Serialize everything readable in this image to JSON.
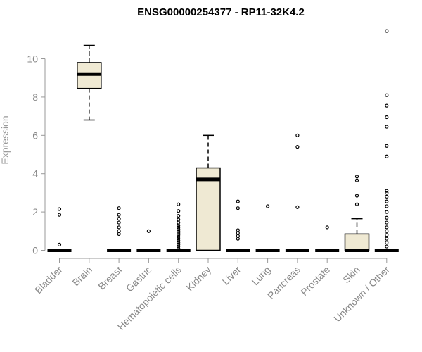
{
  "chart_data": {
    "type": "boxplot",
    "title": "ENSG00000254377 - RP11-32K4.2",
    "ylabel": "Expression",
    "xlabel": "",
    "ylim": [
      0,
      11.6
    ],
    "yticks": [
      0,
      2,
      4,
      6,
      8,
      10
    ],
    "grid": false,
    "colors": {
      "box_fill": "#efe9d3",
      "axis": "#999999",
      "text": "#888888"
    },
    "categories": [
      "Bladder",
      "Brain",
      "Breast",
      "Gastric",
      "Hematopoietic cells",
      "Kidney",
      "Liver",
      "Lung",
      "Pancreas",
      "Prostate",
      "Skin",
      "Unknown / Other"
    ],
    "boxes": [
      {
        "category": "Bladder",
        "min": 0,
        "q1": 0,
        "median": 0,
        "q3": 0,
        "max": 0,
        "outliers": [
          0.3,
          1.85,
          2.15
        ]
      },
      {
        "category": "Brain",
        "min": 6.8,
        "q1": 8.45,
        "median": 9.2,
        "q3": 9.8,
        "max": 10.7,
        "outliers": []
      },
      {
        "category": "Breast",
        "min": 0,
        "q1": 0,
        "median": 0,
        "q3": 0,
        "max": 0,
        "outliers": [
          0.85,
          1.0,
          1.2,
          1.45,
          1.65,
          1.85,
          2.2
        ]
      },
      {
        "category": "Gastric",
        "min": 0,
        "q1": 0,
        "median": 0,
        "q3": 0,
        "max": 0,
        "outliers": [
          1.0
        ]
      },
      {
        "category": "Hematopoietic cells",
        "min": 0,
        "q1": 0,
        "median": 0,
        "q3": 0,
        "max": 0,
        "outliers": [
          0.1,
          0.2,
          0.3,
          0.4,
          0.5,
          0.6,
          0.7,
          0.8,
          0.9,
          1.0,
          1.1,
          1.2,
          1.3,
          1.45,
          1.6,
          1.8,
          2.05,
          2.4
        ]
      },
      {
        "category": "Kidney",
        "min": 0,
        "q1": 0,
        "median": 3.7,
        "q3": 4.3,
        "max": 6.0,
        "outliers": []
      },
      {
        "category": "Liver",
        "min": 0,
        "q1": 0,
        "median": 0,
        "q3": 0,
        "max": 0,
        "outliers": [
          0.6,
          0.75,
          0.9,
          1.05,
          2.2,
          2.55
        ]
      },
      {
        "category": "Lung",
        "min": 0,
        "q1": 0,
        "median": 0,
        "q3": 0,
        "max": 0,
        "outliers": [
          2.3
        ]
      },
      {
        "category": "Pancreas",
        "min": 0,
        "q1": 0,
        "median": 0,
        "q3": 0,
        "max": 0,
        "outliers": [
          2.25,
          5.4,
          6.0
        ]
      },
      {
        "category": "Prostate",
        "min": 0,
        "q1": 0,
        "median": 0,
        "q3": 0,
        "max": 0,
        "outliers": [
          1.2
        ]
      },
      {
        "category": "Skin",
        "min": 0,
        "q1": 0,
        "median": 0,
        "q3": 0.85,
        "max": 1.65,
        "outliers": [
          2.4,
          2.85,
          3.65,
          3.85
        ]
      },
      {
        "category": "Unknown / Other",
        "min": 0,
        "q1": 0,
        "median": 0,
        "q3": 0,
        "max": 0,
        "outliers": [
          0.2,
          0.4,
          0.6,
          0.8,
          1.0,
          1.2,
          1.45,
          1.7,
          2.0,
          2.3,
          2.55,
          2.8,
          3.0,
          3.1,
          4.9,
          5.45,
          6.45,
          6.95,
          7.55,
          8.1,
          11.45
        ]
      }
    ]
  }
}
